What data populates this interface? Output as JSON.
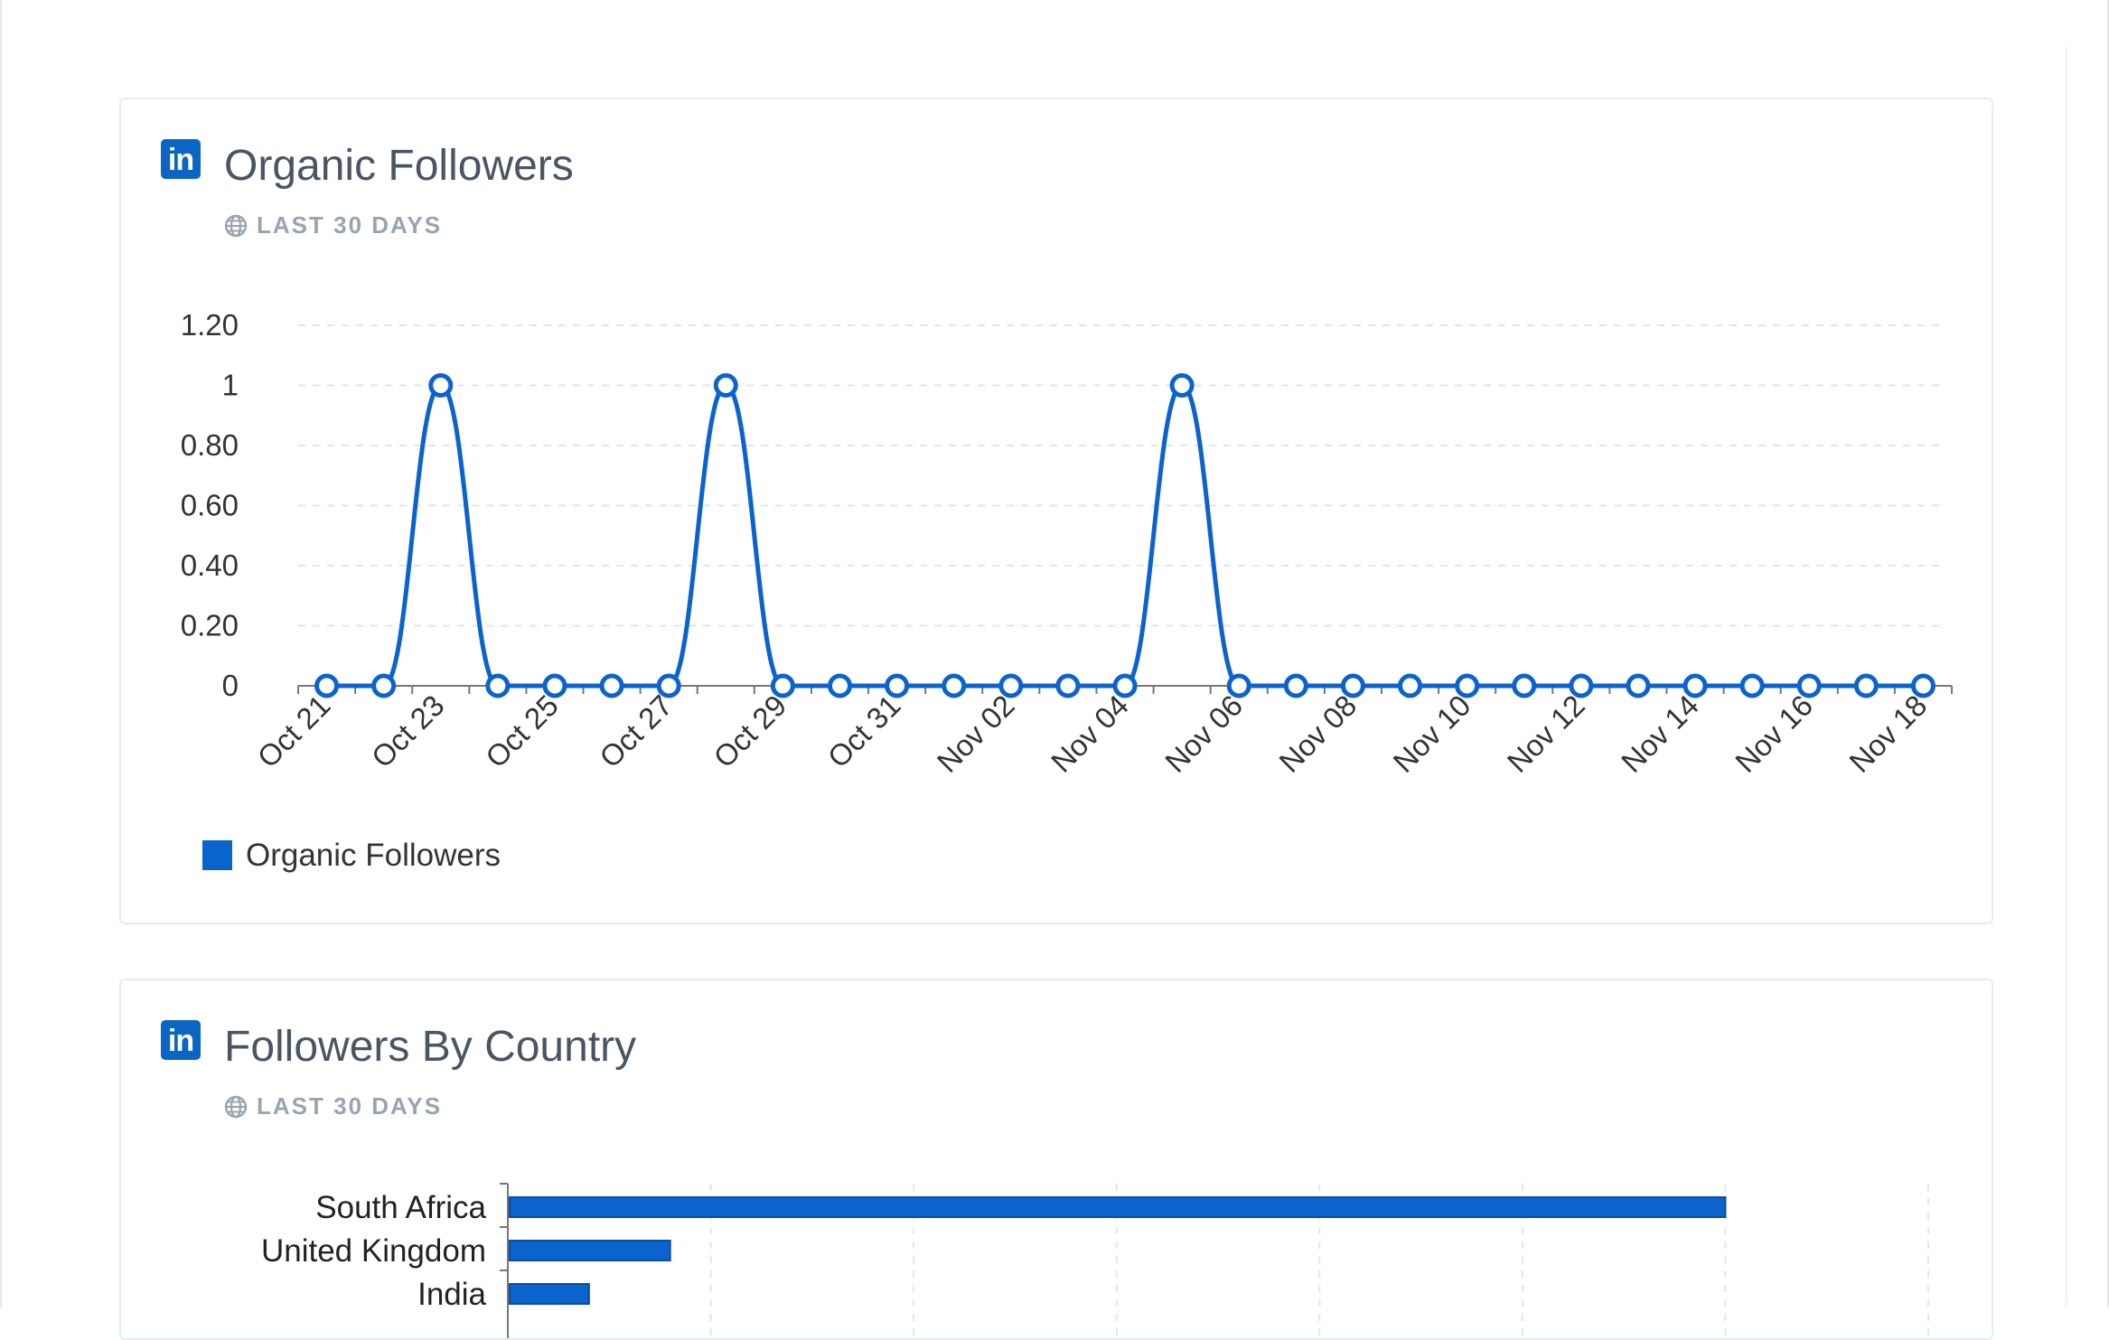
{
  "cards": [
    {
      "title": "Organic Followers",
      "subtitle": "LAST 30 DAYS",
      "logo_icon": "linkedin-icon",
      "subtitle_icon": "globe-icon"
    },
    {
      "title": "Followers By Country",
      "subtitle": "LAST 30 DAYS",
      "logo_icon": "linkedin-icon",
      "subtitle_icon": "globe-icon"
    }
  ],
  "logo_text": "in",
  "colors": {
    "series": "#0b63ce",
    "linkedin": "#0a66c2",
    "title": "#4a5564",
    "subtitle": "#9aa4b1"
  },
  "chart_data": [
    {
      "type": "line",
      "y_tick_labels": [
        "0",
        "0.20",
        "0.40",
        "0.60",
        "0.80",
        "1",
        "1.20"
      ],
      "ylim": [
        0,
        1.2
      ],
      "x_tick_labels": [
        "Oct 21",
        "Oct 23",
        "Oct 25",
        "Oct 27",
        "Oct 29",
        "Oct 31",
        "Nov 02",
        "Nov 04",
        "Nov 06",
        "Nov 08",
        "Nov 10",
        "Nov 12",
        "Nov 14",
        "Nov 16",
        "Nov 18"
      ],
      "x": [
        "Oct 21",
        "Oct 22",
        "Oct 23",
        "Oct 24",
        "Oct 25",
        "Oct 26",
        "Oct 27",
        "Oct 28",
        "Oct 29",
        "Oct 30",
        "Oct 31",
        "Nov 01",
        "Nov 02",
        "Nov 03",
        "Nov 04",
        "Nov 05",
        "Nov 06",
        "Nov 07",
        "Nov 08",
        "Nov 09",
        "Nov 10",
        "Nov 11",
        "Nov 12",
        "Nov 13",
        "Nov 14",
        "Nov 15",
        "Nov 16",
        "Nov 17",
        "Nov 18"
      ],
      "series": [
        {
          "name": "Organic Followers",
          "values": [
            0,
            0,
            1,
            0,
            0,
            0,
            0,
            1,
            0,
            0,
            0,
            0,
            0,
            0,
            0,
            1,
            0,
            0,
            0,
            0,
            0,
            0,
            0,
            0,
            0,
            0,
            0,
            0,
            0
          ]
        }
      ],
      "legend": "bottom-left",
      "grid": true
    },
    {
      "type": "bar",
      "orientation": "horizontal",
      "categories": [
        "South Africa",
        "United Kingdom",
        "India"
      ],
      "values": [
        6,
        0.8,
        0.4
      ],
      "xlim": [
        0,
        7
      ],
      "grid": true
    }
  ]
}
